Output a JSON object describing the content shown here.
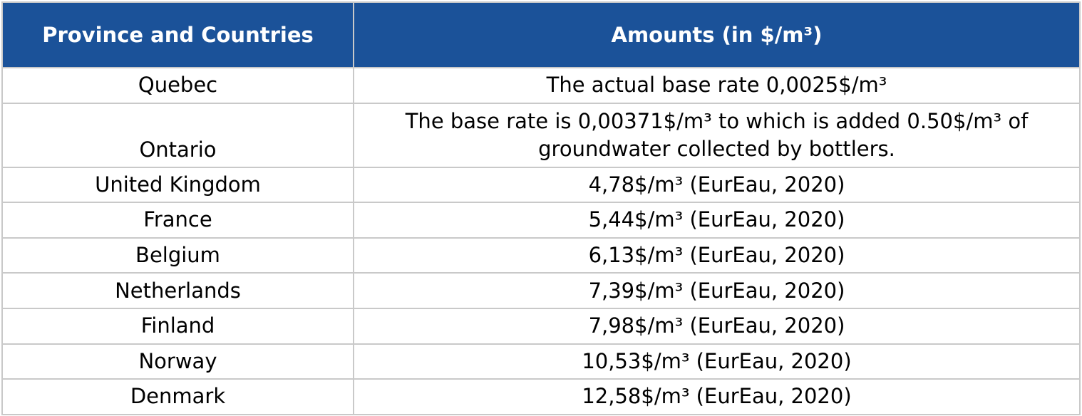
{
  "table": {
    "headers": [
      "Province and Countries",
      "Amounts (in $/m³)"
    ],
    "rows": [
      {
        "country": "Quebec",
        "amount": "The actual base rate 0,0025$/m³"
      },
      {
        "country": "Ontario",
        "amount_line1": "The base rate is 0,00371$/m³ to which is added 0.50$/m³ of",
        "amount_line2": "groundwater collected by bottlers."
      },
      {
        "country": "United Kingdom",
        "amount": "4,78$/m³ (EurEau, 2020)"
      },
      {
        "country": "France",
        "amount": "5,44$/m³ (EurEau, 2020)"
      },
      {
        "country": "Belgium",
        "amount": "6,13$/m³ (EurEau, 2020)"
      },
      {
        "country": "Netherlands",
        "amount": "7,39$/m³ (EurEau, 2020)"
      },
      {
        "country": "Finland",
        "amount": "7,98$/m³ (EurEau, 2020)"
      },
      {
        "country": "Norway",
        "amount": "10,53$/m³ (EurEau, 2020)"
      },
      {
        "country": "Denmark",
        "amount": "12,58$/m³ (EurEau, 2020)"
      }
    ]
  },
  "colors": {
    "header_background": "#1b5299",
    "header_text": "#ffffff",
    "border": "#c9c9c9"
  }
}
